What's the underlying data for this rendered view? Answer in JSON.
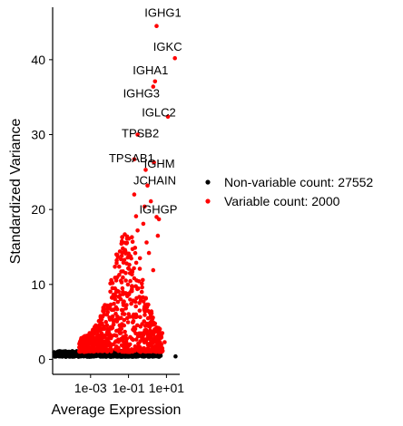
{
  "chart_data": {
    "type": "scatter",
    "title": "",
    "xlabel": "Average Expression",
    "ylabel": "Standardized Variance",
    "x_scale": "log10",
    "xlim": [
      1e-05,
      50
    ],
    "ylim": [
      -2,
      47
    ],
    "x_ticks": [
      {
        "value": 0.001,
        "label": "1e-03"
      },
      {
        "value": 0.1,
        "label": "1e-01"
      },
      {
        "value": 10,
        "label": "1e+01"
      }
    ],
    "y_ticks": [
      0,
      10,
      20,
      30,
      40
    ],
    "grid": false,
    "legend_position": "right",
    "series": [
      {
        "name": "Non-variable count: 27552",
        "color": "#000000",
        "points": []
      },
      {
        "name": "Variable count: 2000",
        "color": "#ff0000",
        "points": []
      }
    ],
    "labeled_genes": [
      {
        "label": "IGHG1",
        "x": 3,
        "y": 44.5
      },
      {
        "label": "IGKC",
        "x": 28,
        "y": 40.2
      },
      {
        "label": "IGHA1",
        "x": 2.5,
        "y": 37.1
      },
      {
        "label": "IGHG3",
        "x": 2.0,
        "y": 36.4
      },
      {
        "label": "IGLC2",
        "x": 12,
        "y": 32.4
      },
      {
        "label": "TPSB2",
        "x": 0.3,
        "y": 30.0
      },
      {
        "label": "TPSAB1",
        "x": 0.2,
        "y": 26.7
      },
      {
        "label": "IGHM",
        "x": 2.2,
        "y": 26.3
      },
      {
        "label": "JCHAIN",
        "x": 0.8,
        "y": 25.3
      },
      {
        "label": "IGHGP",
        "x": 3.0,
        "y": 19.0
      }
    ]
  }
}
